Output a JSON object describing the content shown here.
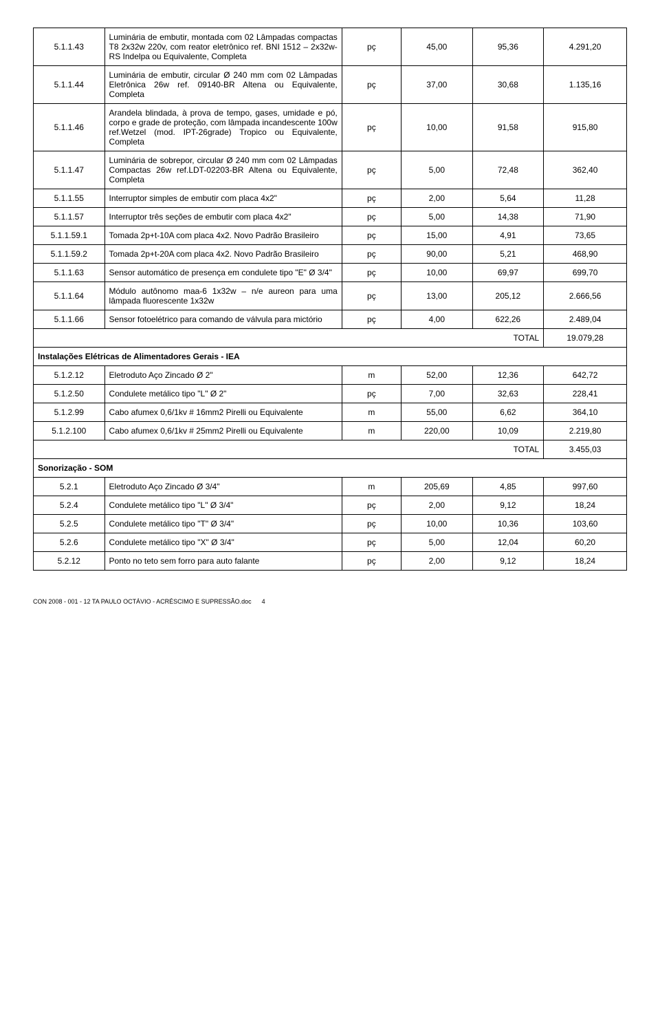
{
  "rows": [
    {
      "code": "5.1.1.43",
      "desc": "Luminária de embutir, montada com 02 Lâmpadas compactas T8 2x32w 220v, com reator eletrônico ref. BNI 1512 – 2x32w-RS Indelpa ou Equivalente, Completa",
      "unit": "pç",
      "qty": "45,00",
      "price": "95,36",
      "total": "4.291,20"
    },
    {
      "code": "5.1.1.44",
      "desc": "Luminária de embutir, circular Ø 240 mm com 02 Lâmpadas Eletrônica 26w ref. 09140-BR Altena ou Equivalente, Completa",
      "unit": "pç",
      "qty": "37,00",
      "price": "30,68",
      "total": "1.135,16"
    },
    {
      "code": "5.1.1.46",
      "desc": "Arandela blindada, à prova de tempo, gases, umidade e pó, corpo e grade de proteção, com lâmpada incandescente 100w ref.Wetzel (mod. IPT-26grade) Tropico ou Equivalente, Completa",
      "unit": "pç",
      "qty": "10,00",
      "price": "91,58",
      "total": "915,80"
    },
    {
      "code": "5.1.1.47",
      "desc": "Luminária de sobrepor, circular Ø 240 mm com 02 Lâmpadas Compactas 26w ref.LDT-02203-BR Altena ou Equivalente, Completa",
      "unit": "pç",
      "qty": "5,00",
      "price": "72,48",
      "total": "362,40"
    },
    {
      "code": "5.1.1.55",
      "desc": "Interruptor simples de embutir com placa 4x2\"",
      "unit": "pç",
      "qty": "2,00",
      "price": "5,64",
      "total": "11,28"
    },
    {
      "code": "5.1.1.57",
      "desc": "Interruptor três seções de embutir com placa 4x2\"",
      "unit": "pç",
      "qty": "5,00",
      "price": "14,38",
      "total": "71,90"
    },
    {
      "code": "5.1.1.59.1",
      "desc": "Tomada 2p+t-10A com placa 4x2. Novo Padrão Brasileiro",
      "unit": "pç",
      "qty": "15,00",
      "price": "4,91",
      "total": "73,65"
    },
    {
      "code": "5.1.1.59.2",
      "desc": "Tomada 2p+t-20A com placa 4x2. Novo Padrão Brasileiro",
      "unit": "pç",
      "qty": "90,00",
      "price": "5,21",
      "total": "468,90"
    },
    {
      "code": "5.1.1.63",
      "desc": "Sensor automático de presença em condulete tipo \"E\" Ø 3/4\"",
      "unit": "pç",
      "qty": "10,00",
      "price": "69,97",
      "total": "699,70"
    },
    {
      "code": "5.1.1.64",
      "desc": "Módulo autônomo maa-6 1x32w – n/e aureon para uma lâmpada fluorescente 1x32w",
      "unit": "pç",
      "qty": "13,00",
      "price": "205,12",
      "total": "2.666,56"
    },
    {
      "code": "5.1.1.66",
      "desc": "Sensor fotoelétrico para comando de válvula para mictório",
      "unit": "pç",
      "qty": "4,00",
      "price": "622,26",
      "total": "2.489,04"
    },
    {
      "type": "total",
      "label": "TOTAL",
      "total": "19.079,28"
    },
    {
      "type": "section",
      "title": "Instalações Elétricas de Alimentadores Gerais - IEA"
    },
    {
      "code": "5.1.2.12",
      "desc": "Eletroduto Aço Zincado Ø 2\"",
      "unit": "m",
      "qty": "52,00",
      "price": "12,36",
      "total": "642,72"
    },
    {
      "code": "5.1.2.50",
      "desc": "Condulete metálico tipo \"L\" Ø 2\"",
      "unit": "pç",
      "qty": "7,00",
      "price": "32,63",
      "total": "228,41"
    },
    {
      "code": "5.1.2.99",
      "desc": "Cabo afumex 0,6/1kv # 16mm2 Pirelli ou Equivalente",
      "unit": "m",
      "qty": "55,00",
      "price": "6,62",
      "total": "364,10"
    },
    {
      "code": "5.1.2.100",
      "desc": "Cabo afumex 0,6/1kv # 25mm2 Pirelli ou Equivalente",
      "unit": "m",
      "qty": "220,00",
      "price": "10,09",
      "total": "2.219,80"
    },
    {
      "type": "total",
      "label": "TOTAL",
      "total": "3.455,03"
    },
    {
      "type": "section",
      "title": "Sonorização - SOM"
    },
    {
      "code": "5.2.1",
      "desc": "Eletroduto Aço Zincado Ø 3/4\"",
      "unit": "m",
      "qty": "205,69",
      "price": "4,85",
      "total": "997,60"
    },
    {
      "code": "5.2.4",
      "desc": "Condulete metálico tipo \"L\" Ø 3/4\"",
      "unit": "pç",
      "qty": "2,00",
      "price": "9,12",
      "total": "18,24"
    },
    {
      "code": "5.2.5",
      "desc": "Condulete metálico tipo \"T\" Ø 3/4\"",
      "unit": "pç",
      "qty": "10,00",
      "price": "10,36",
      "total": "103,60"
    },
    {
      "code": "5.2.6",
      "desc": "Condulete metálico tipo \"X\" Ø 3/4\"",
      "unit": "pç",
      "qty": "5,00",
      "price": "12,04",
      "total": "60,20"
    },
    {
      "code": "5.2.12",
      "desc": "Ponto no teto sem forro para auto falante",
      "unit": "pç",
      "qty": "2,00",
      "price": "9,12",
      "total": "18,24"
    }
  ],
  "footer": "CON 2008 - 001 - 12 TA  PAULO OCTÁVIO - ACRÉSCIMO E SUPRESSÃO.doc",
  "pageno": "4"
}
